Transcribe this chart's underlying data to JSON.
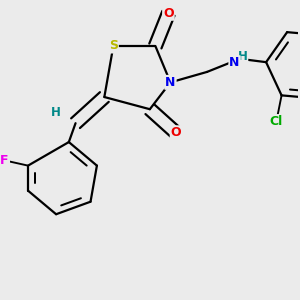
{
  "background_color": "#ebebeb",
  "atom_colors": {
    "C": "#000000",
    "S": "#b8b800",
    "N": "#0000ee",
    "O": "#ee0000",
    "F": "#ee00ee",
    "Cl": "#00aa00",
    "H": "#008888"
  },
  "bond_color": "#000000",
  "bond_width": 1.6,
  "figsize": [
    3.0,
    3.0
  ],
  "dpi": 100
}
